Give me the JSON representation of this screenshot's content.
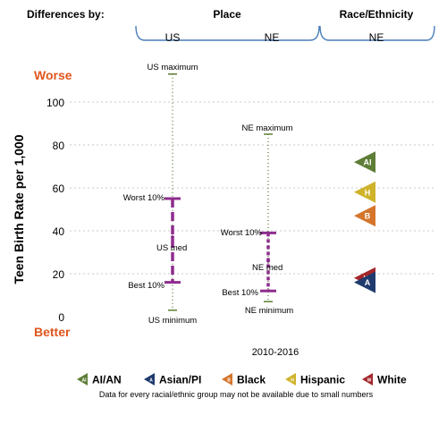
{
  "header": {
    "differences_by": "Differences by:",
    "place_label": "Place",
    "race_label": "Race/Ethnicity",
    "col_us": "US",
    "col_ne": "NE",
    "col_race_ne": "NE"
  },
  "labels": {
    "worse": "Worse",
    "better": "Better",
    "us_max": "US maximum",
    "us_min": "US minimum",
    "us_worst": "Worst 10%",
    "us_best": "Best 10%",
    "us_med": "US med",
    "ne_max": "NE maximum",
    "ne_min": "NE minimum",
    "ne_worst": "Worst 10%",
    "ne_best": "Best 10%",
    "ne_med": "NE med"
  },
  "legend": {
    "items": [
      {
        "code": "AI",
        "label": "AI/AN",
        "color": "#5e7d36"
      },
      {
        "code": "A",
        "label": "Asian/PI",
        "color": "#1f3a6e"
      },
      {
        "code": "B",
        "label": "Black",
        "color": "#d4752b"
      },
      {
        "code": "H",
        "label": "Hispanic",
        "color": "#cfb32a"
      },
      {
        "code": "W",
        "label": "White",
        "color": "#a3262a"
      }
    ],
    "note": "Data for every racial/ethnic group may not be available due to small numbers"
  },
  "colors": {
    "worse": "#e0561d",
    "better": "#e0561d",
    "whisker": "#5e7d36",
    "box": "#8e2d8e",
    "grid": "#c8c8c8",
    "bracket": "#4a7ebb"
  },
  "chart_data": {
    "type": "box",
    "ylabel": "Teen Birth Rate per 1,000",
    "xlabel": "2010-2016",
    "ylim": [
      0,
      110
    ],
    "yticks": [
      0,
      20,
      40,
      60,
      80,
      100
    ],
    "grid": true,
    "distributions": [
      {
        "name": "US",
        "max": 113,
        "worst10": 55,
        "median": 37,
        "best10": 16,
        "min": 3
      },
      {
        "name": "NE",
        "max": 85,
        "worst10": 39,
        "median": 26,
        "best10": 12,
        "min": 7
      }
    ],
    "race_markers": [
      {
        "code": "AI",
        "value": 72
      },
      {
        "code": "H",
        "value": 58
      },
      {
        "code": "B",
        "value": 47
      },
      {
        "code": "W",
        "value": 18
      },
      {
        "code": "A",
        "value": 16
      }
    ]
  }
}
